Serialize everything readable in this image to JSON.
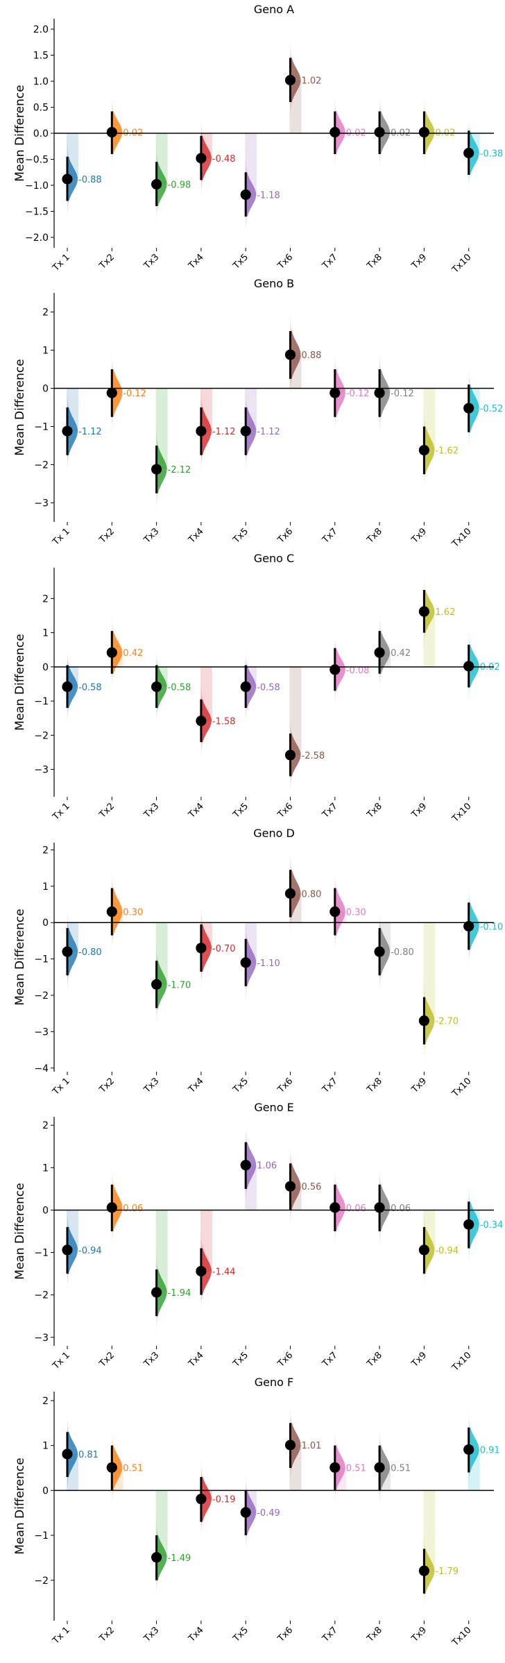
{
  "chart_data": [
    {
      "type": "scatter",
      "title": "Geno A",
      "ylabel": "Mean Difference",
      "xlabel": "",
      "categories": [
        "Tx 1",
        "Tx2",
        "Tx3",
        "Tx4",
        "Tx5",
        "Tx6",
        "Tx7",
        "Tx8",
        "Tx9",
        "Tx10"
      ],
      "values": [
        -0.88,
        0.02,
        -0.98,
        -0.48,
        -1.18,
        1.02,
        0.02,
        0.02,
        0.02,
        -0.38
      ],
      "value_labels": [
        "-0.88",
        "0.02",
        "-0.98",
        "-0.48",
        "-1.18",
        "1.02",
        "0.02",
        "0.02",
        "0.02",
        "-0.38"
      ],
      "ci_low": [
        -1.3,
        -0.4,
        -1.4,
        -0.9,
        -1.6,
        0.6,
        -0.4,
        -0.4,
        -0.4,
        -0.8
      ],
      "ci_high": [
        -0.45,
        0.42,
        -0.55,
        -0.05,
        -0.75,
        1.45,
        0.42,
        0.42,
        0.42,
        0.05
      ],
      "yticks": [
        -2.0,
        -1.5,
        -1.0,
        -0.5,
        0.0,
        0.5,
        1.0,
        1.5,
        2.0
      ],
      "ytick_labels": [
        "−2.0",
        "−1.5",
        "−1.0",
        "−0.5",
        "0.0",
        "0.5",
        "1.0",
        "1.5",
        "2.0"
      ],
      "ylim": [
        -2.2,
        2.2
      ],
      "grid": false
    },
    {
      "type": "scatter",
      "title": "Geno B",
      "ylabel": "Mean Difference",
      "xlabel": "",
      "categories": [
        "Tx 1",
        "Tx2",
        "Tx3",
        "Tx4",
        "Tx5",
        "Tx6",
        "Tx7",
        "Tx8",
        "Tx9",
        "Tx10"
      ],
      "values": [
        -1.12,
        -0.12,
        -2.12,
        -1.12,
        -1.12,
        0.88,
        -0.12,
        -0.12,
        -1.62,
        -0.52
      ],
      "value_labels": [
        "-1.12",
        "-0.12",
        "-2.12",
        "-1.12",
        "-1.12",
        "0.88",
        "-0.12",
        "-0.12",
        "-1.62",
        "-0.52"
      ],
      "ci_low": [
        -1.75,
        -0.75,
        -2.75,
        -1.75,
        -1.75,
        0.25,
        -0.75,
        -0.75,
        -2.25,
        -1.15
      ],
      "ci_high": [
        -0.5,
        0.5,
        -1.5,
        -0.5,
        -0.5,
        1.5,
        0.5,
        0.5,
        -1.0,
        0.1
      ],
      "yticks": [
        -3,
        -2,
        -1,
        0,
        1,
        2
      ],
      "ytick_labels": [
        "−3",
        "−2",
        "−1",
        "0",
        "1",
        "2"
      ],
      "ylim": [
        -3.5,
        2.5
      ],
      "grid": false
    },
    {
      "type": "scatter",
      "title": "Geno C",
      "ylabel": "Mean Difference",
      "xlabel": "",
      "categories": [
        "Tx 1",
        "Tx2",
        "Tx3",
        "Tx4",
        "Tx5",
        "Tx6",
        "Tx7",
        "Tx8",
        "Tx9",
        "Tx10"
      ],
      "values": [
        -0.58,
        0.42,
        -0.58,
        -1.58,
        -0.58,
        -2.58,
        -0.08,
        0.42,
        1.62,
        0.02
      ],
      "value_labels": [
        "-0.58",
        "0.42",
        "-0.58",
        "-1.58",
        "-0.58",
        "-2.58",
        "-0.08",
        "0.42",
        "1.62",
        "0.02"
      ],
      "ci_low": [
        -1.2,
        -0.2,
        -1.2,
        -2.2,
        -1.2,
        -3.2,
        -0.7,
        -0.2,
        1.0,
        -0.6
      ],
      "ci_high": [
        0.05,
        1.05,
        0.05,
        -0.95,
        0.05,
        -1.95,
        0.55,
        1.05,
        2.25,
        0.65
      ],
      "yticks": [
        -3,
        -2,
        -1,
        0,
        1,
        2
      ],
      "ytick_labels": [
        "−3",
        "−2",
        "−1",
        "0",
        "1",
        "2"
      ],
      "ylim": [
        -3.8,
        2.9
      ],
      "grid": false
    },
    {
      "type": "scatter",
      "title": "Geno D",
      "ylabel": "Mean Difference",
      "xlabel": "",
      "categories": [
        "Tx 1",
        "Tx2",
        "Tx3",
        "Tx4",
        "Tx5",
        "Tx6",
        "Tx7",
        "Tx8",
        "Tx9",
        "Tx10"
      ],
      "values": [
        -0.8,
        0.3,
        -1.7,
        -0.7,
        -1.1,
        0.8,
        0.3,
        -0.8,
        -2.7,
        -0.1
      ],
      "value_labels": [
        "-0.80",
        "0.30",
        "-1.70",
        "-0.70",
        "-1.10",
        "0.80",
        "0.30",
        "-0.80",
        "-2.70",
        "-0.10"
      ],
      "ci_low": [
        -1.45,
        -0.35,
        -2.35,
        -1.35,
        -1.75,
        0.15,
        -0.35,
        -1.45,
        -3.35,
        -0.75
      ],
      "ci_high": [
        -0.15,
        0.95,
        -1.05,
        -0.05,
        -0.45,
        1.45,
        0.95,
        -0.15,
        -2.05,
        0.55
      ],
      "yticks": [
        -4,
        -3,
        -2,
        -1,
        0,
        1,
        2
      ],
      "ytick_labels": [
        "−4",
        "−3",
        "−2",
        "−1",
        "0",
        "1",
        "2"
      ],
      "ylim": [
        -4.1,
        2.2
      ],
      "grid": false
    },
    {
      "type": "scatter",
      "title": "Geno E",
      "ylabel": "Mean Difference",
      "xlabel": "",
      "categories": [
        "Tx 1",
        "Tx2",
        "Tx3",
        "Tx4",
        "Tx5",
        "Tx6",
        "Tx7",
        "Tx8",
        "Tx9",
        "Tx10"
      ],
      "values": [
        -0.94,
        0.06,
        -1.94,
        -1.44,
        1.06,
        0.56,
        0.06,
        0.06,
        -0.94,
        -0.34
      ],
      "value_labels": [
        "-0.94",
        "0.06",
        "-1.94",
        "-1.44",
        "1.06",
        "0.56",
        "0.06",
        "0.06",
        "-0.94",
        "-0.34"
      ],
      "ci_low": [
        -1.5,
        -0.5,
        -2.5,
        -2.0,
        0.5,
        0.0,
        -0.5,
        -0.5,
        -1.5,
        -0.9
      ],
      "ci_high": [
        -0.4,
        0.6,
        -1.4,
        -0.9,
        1.6,
        1.1,
        0.6,
        0.6,
        -0.4,
        0.2
      ],
      "yticks": [
        -3,
        -2,
        -1,
        0,
        1,
        2
      ],
      "ytick_labels": [
        "−3",
        "−2",
        "−1",
        "0",
        "1",
        "2"
      ],
      "ylim": [
        -3.2,
        2.2
      ],
      "grid": false
    },
    {
      "type": "scatter",
      "title": "Geno F",
      "ylabel": "Mean Difference",
      "xlabel": "",
      "categories": [
        "Tx 1",
        "Tx2",
        "Tx3",
        "Tx4",
        "Tx5",
        "Tx6",
        "Tx7",
        "Tx8",
        "Tx9",
        "Tx10"
      ],
      "values": [
        0.81,
        0.51,
        -1.49,
        -0.19,
        -0.49,
        1.01,
        0.51,
        0.51,
        -1.79,
        0.91
      ],
      "value_labels": [
        "0.81",
        "0.51",
        "-1.49",
        "-0.19",
        "-0.49",
        "1.01",
        "0.51",
        "0.51",
        "-1.79",
        "0.91"
      ],
      "ci_low": [
        0.3,
        0.0,
        -2.0,
        -0.7,
        -1.0,
        0.5,
        0.0,
        0.0,
        -2.3,
        0.4
      ],
      "ci_high": [
        1.3,
        1.0,
        -1.0,
        0.3,
        0.0,
        1.5,
        1.0,
        1.0,
        -1.3,
        1.4
      ],
      "yticks": [
        -2,
        -1,
        0,
        1,
        2
      ],
      "ytick_labels": [
        "−2",
        "−1",
        "0",
        "1",
        "2"
      ],
      "ylim": [
        -2.9,
        2.2
      ],
      "grid": false
    }
  ],
  "colors": [
    "#1f77b4",
    "#ff7f0e",
    "#2ca02c",
    "#d62728",
    "#9467bd",
    "#8c564b",
    "#e377c2",
    "#7f7f7f",
    "#bcbd22",
    "#17becf"
  ]
}
